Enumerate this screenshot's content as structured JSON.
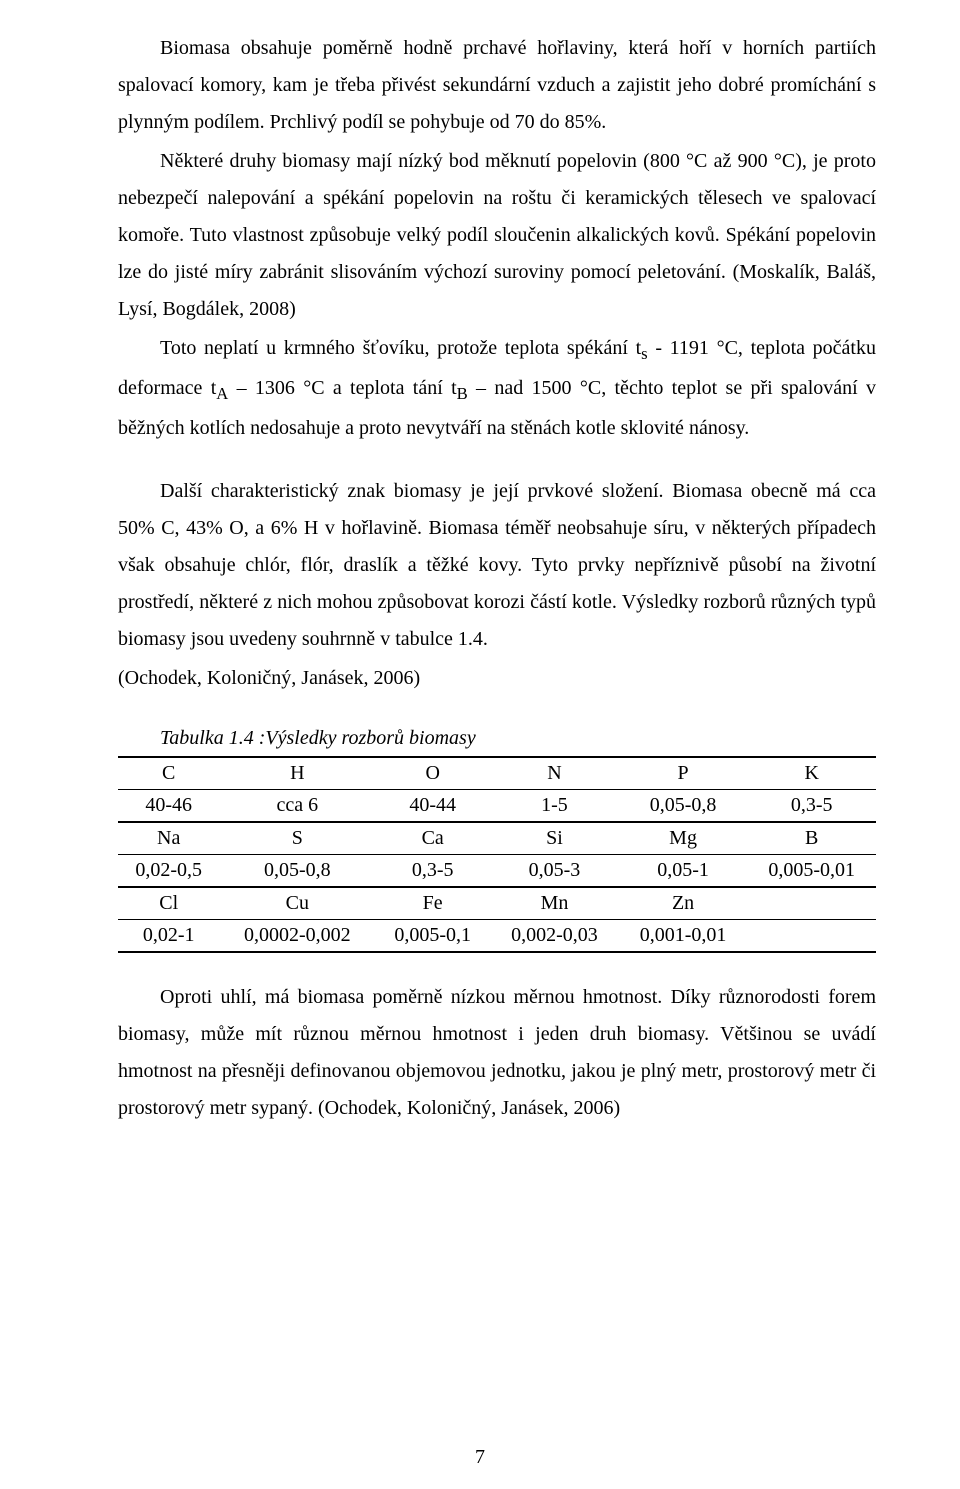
{
  "paragraphs": {
    "p1": "Biomasa obsahuje poměrně hodně prchavé hořlaviny, která hoří v horních partiích spalovací komory, kam je třeba přivést sekundární vzduch a zajistit jeho dobré promíchání s plynným podílem. Prchlivý podíl se pohybuje od 70 do 85%.",
    "p2a": "Některé druhy biomasy mají nízký bod měknutí popelovin (800 °C až 900 °C), je proto nebezpečí nalepování a spékání popelovin na roštu či keramických tělesech ve spalovací komoře. Tuto vlastnost způsobuje velký podíl sloučenin alkalických kovů. Spékání popelovin lze do jisté míry zabránit slisováním výchozí suroviny pomocí peletování. (Moskalík, Baláš, Lysí, Bogdálek, 2008)",
    "p2b_pre": "Toto neplatí u krmného šťovíku, protože teplota spékání t",
    "p2b_sub1": "s",
    "p2b_mid1": " - 1191 °C, teplota počátku deformace t",
    "p2b_sub2": "A",
    "p2b_mid2": " – 1306 °C a teplota tání t",
    "p2b_sub3": "B",
    "p2b_mid3": " – nad 1500 °C, těchto teplot se při spalování v běžných kotlích nedosahuje a proto nevytváří na stěnách kotle sklovité nánosy.",
    "p3": "Další charakteristický znak biomasy je její prvkové složení. Biomasa obecně má cca 50% C, 43% O, a 6% H v hořlavině. Biomasa téměř neobsahuje síru, v některých případech však obsahuje chlór, flór, draslík a těžké kovy. Tyto prvky nepříznivě působí na životní prostředí, některé z nich mohou způsobovat korozi částí kotle. Výsledky rozborů různých typů biomasy jsou uvedeny souhrnně v tabulce 1.4.",
    "p3_ref": "(Ochodek, Koloničný, Janásek, 2006)",
    "p4": "Oproti uhlí, má biomasa poměrně nízkou měrnou hmotnost. Díky různorodosti forem biomasy, může mít různou měrnou hmotnost i jeden druh biomasy. Většinou se uvádí hmotnost na přesněji definovanou objemovou jednotku, jakou je plný metr, prostorový metr či prostorový metr sypaný. (Ochodek, Koloničný, Janásek, 2006)"
  },
  "table": {
    "caption": "Tabulka 1.4 :Výsledky rozborů biomasy",
    "rows": [
      {
        "type": "header",
        "cells": [
          "C",
          "H",
          "O",
          "N",
          "P",
          "K"
        ]
      },
      {
        "type": "value",
        "cells": [
          "40-46",
          "cca 6",
          "40-44",
          "1-5",
          "0,05-0,8",
          "0,3-5"
        ]
      },
      {
        "type": "header",
        "cells": [
          "Na",
          "S",
          "Ca",
          "Si",
          "Mg",
          "B"
        ]
      },
      {
        "type": "value",
        "cells": [
          "0,02-0,5",
          "0,05-0,8",
          "0,3-5",
          "0,05-3",
          "0,05-1",
          "0,005-0,01"
        ]
      },
      {
        "type": "header",
        "cells": [
          "Cl",
          "Cu",
          "Fe",
          "Mn",
          "Zn",
          ""
        ]
      },
      {
        "type": "value-last",
        "cells": [
          "0,02-1",
          "0,0002-0,002",
          "0,005-0,1",
          "0,002-0,03",
          "0,001-0,01",
          ""
        ]
      }
    ]
  },
  "page_number": "7"
}
